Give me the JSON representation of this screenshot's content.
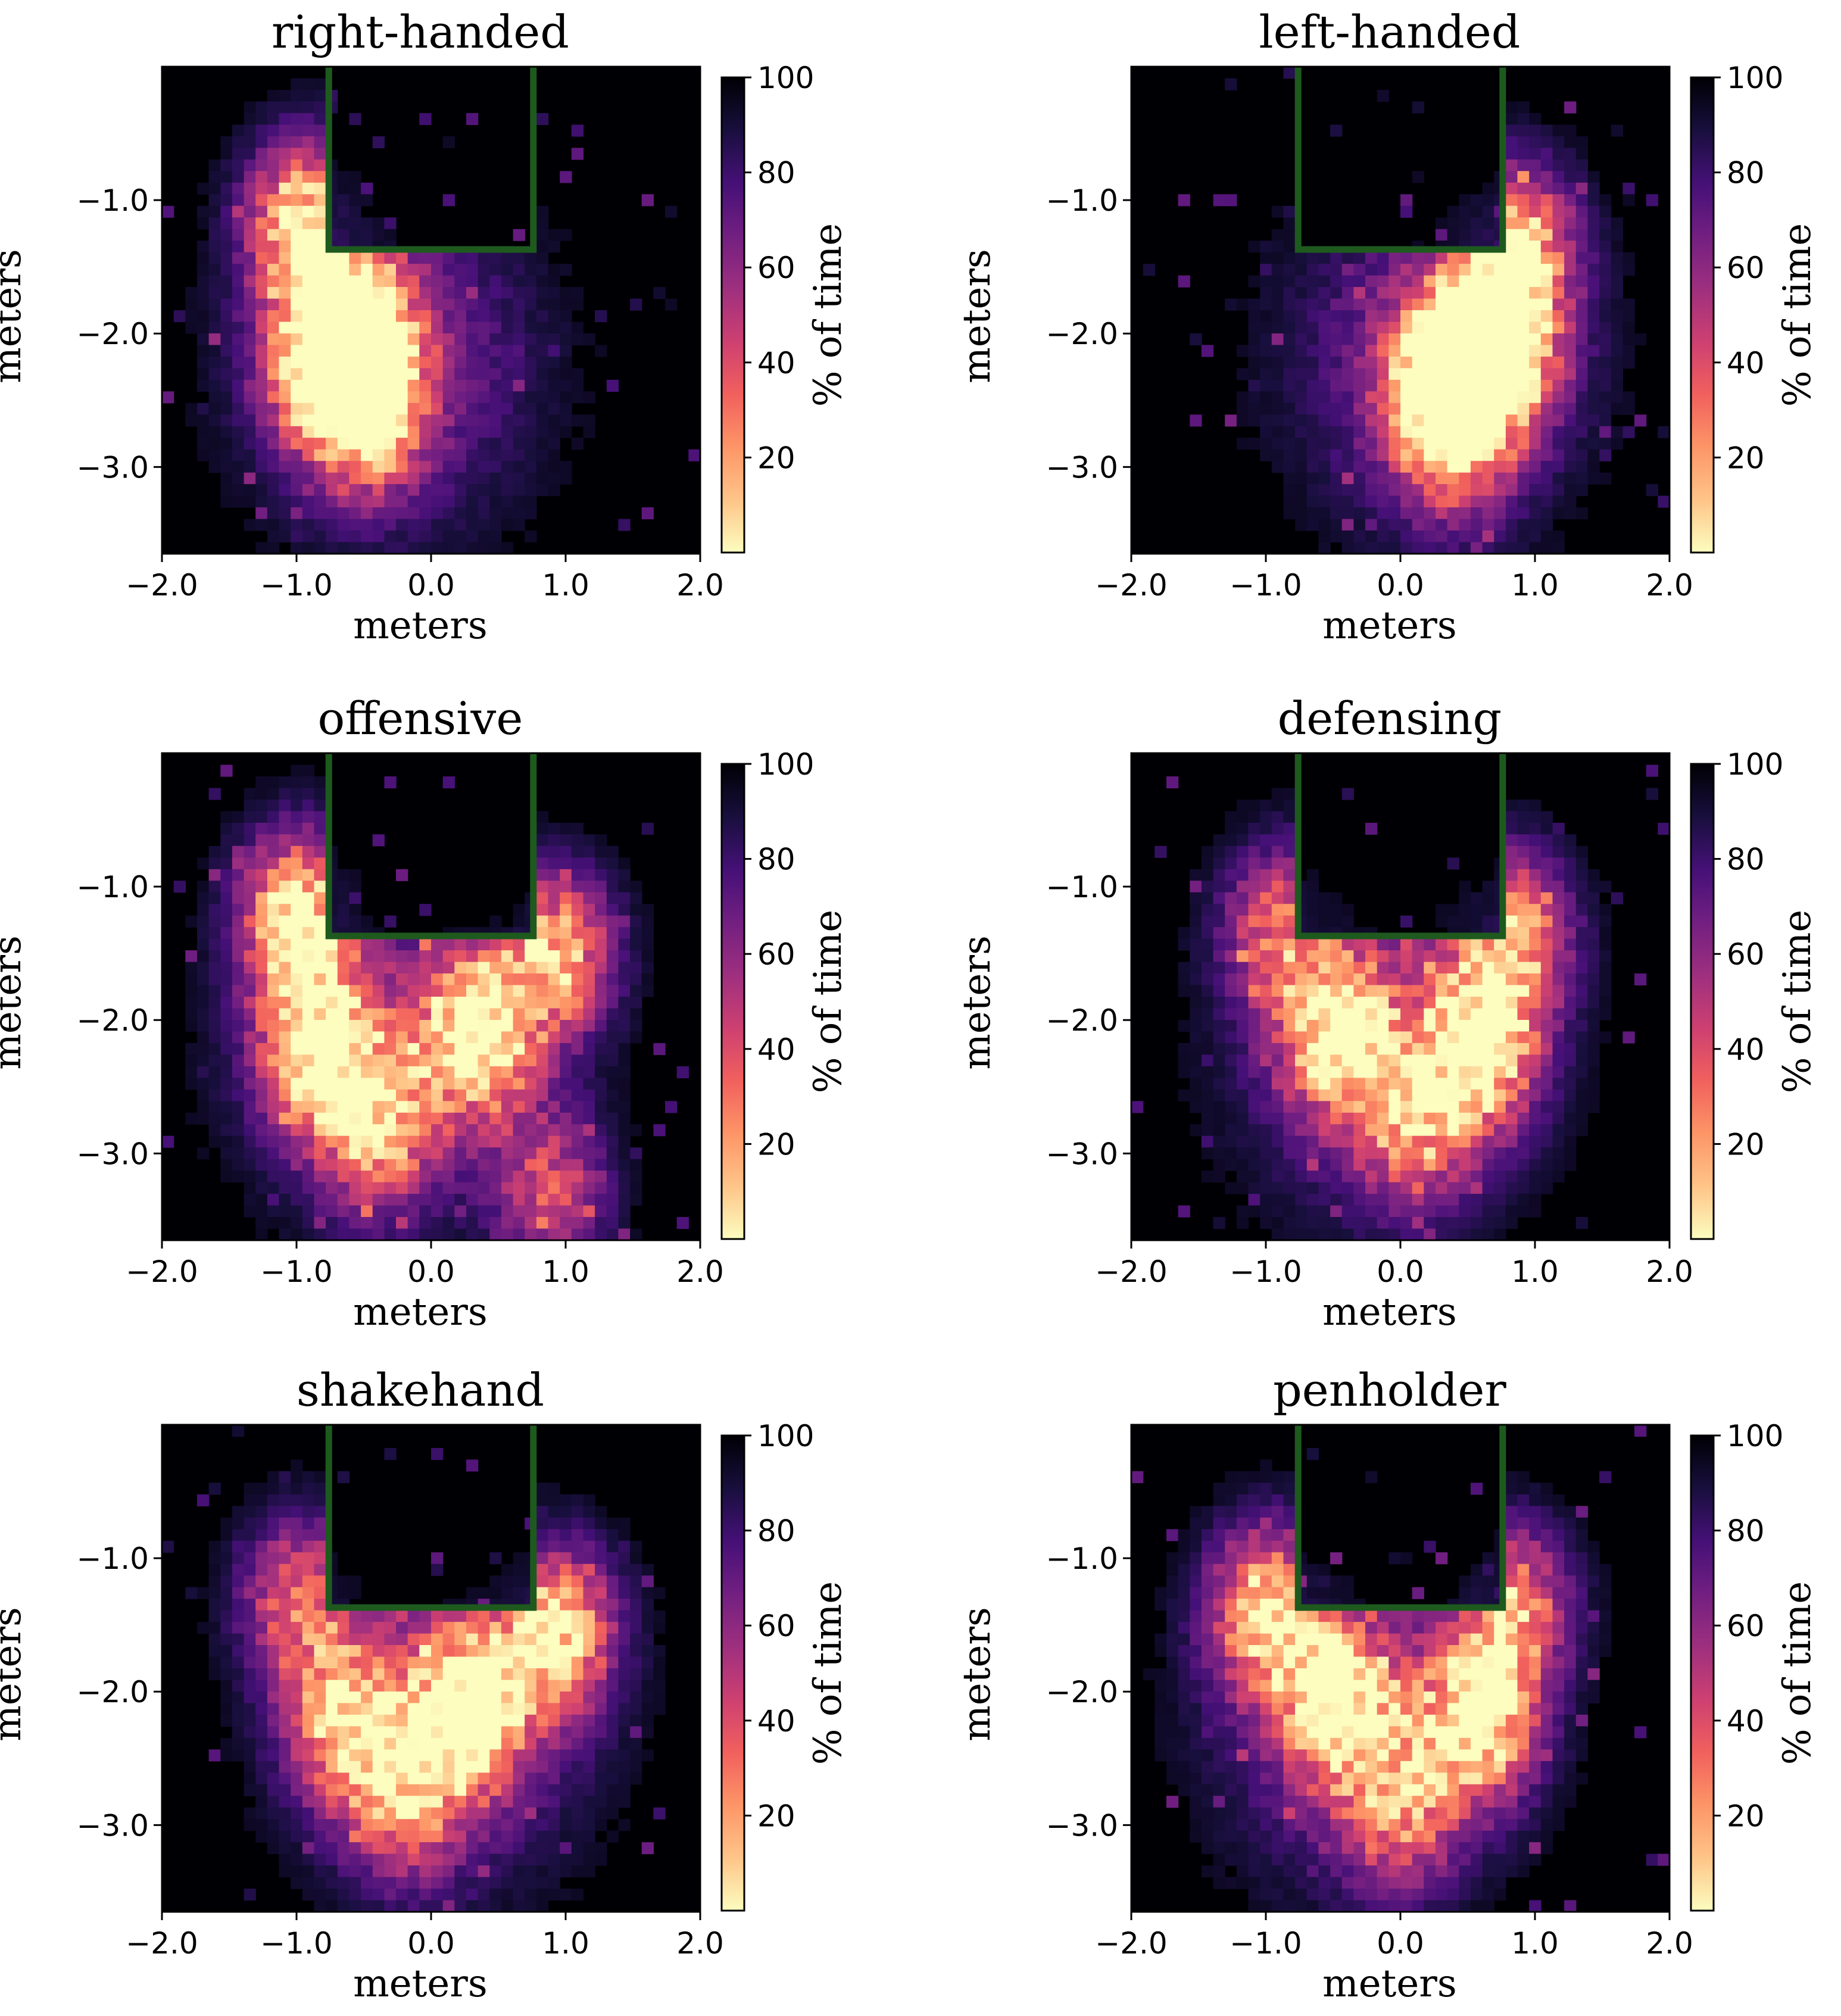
{
  "colors": {
    "table_outline": "#1e5a1e",
    "colormap": [
      "#fcfdbf",
      "#fec488",
      "#fd9567",
      "#f1605d",
      "#cd4071",
      "#9e2f7f",
      "#721f81",
      "#451077",
      "#180f3d",
      "#000004"
    ]
  },
  "chart_data": [
    {
      "type": "heatmap",
      "title": "right-handed",
      "xlabel": "meters",
      "ylabel": "meters",
      "xlim": [
        -2.0,
        2.0
      ],
      "ylim": [
        -3.65,
        0.0
      ],
      "xticks": [
        "−2.0",
        "−1.0",
        "0.0",
        "1.0",
        "2.0"
      ],
      "yticks": [
        "−1.0",
        "−2.0",
        "−3.0"
      ],
      "colorbar": {
        "label": "% of time",
        "range": [
          0,
          100
        ],
        "ticks": [
          "100",
          "80",
          "60",
          "40",
          "20"
        ]
      },
      "table_rect": {
        "x": [
          -0.76,
          0.76
        ],
        "y": [
          -1.37,
          0.0
        ]
      },
      "hotspots": [
        {
          "x": -0.95,
          "y": -1.15,
          "intensity": 0.85
        },
        {
          "x": -0.55,
          "y": -2.0,
          "intensity": 0.95
        },
        {
          "x": -0.5,
          "y": -2.6,
          "intensity": 0.75
        },
        {
          "x": -0.85,
          "y": -2.2,
          "intensity": 0.6
        }
      ]
    },
    {
      "type": "heatmap",
      "title": "left-handed",
      "xlabel": "meters",
      "ylabel": "meters",
      "xlim": [
        -2.0,
        2.0
      ],
      "ylim": [
        -3.65,
        0.0
      ],
      "xticks": [
        "−2.0",
        "−1.0",
        "0.0",
        "1.0",
        "2.0"
      ],
      "yticks": [
        "−1.0",
        "−2.0",
        "−3.0"
      ],
      "colorbar": {
        "label": "% of time",
        "range": [
          0,
          100
        ],
        "ticks": [
          "100",
          "80",
          "60",
          "40",
          "20"
        ]
      },
      "table_rect": {
        "x": [
          -0.76,
          0.76
        ],
        "y": [
          -1.37,
          0.0
        ]
      },
      "hotspots": [
        {
          "x": 0.85,
          "y": -1.35,
          "intensity": 0.8
        },
        {
          "x": 0.35,
          "y": -2.3,
          "intensity": 0.95
        },
        {
          "x": 0.75,
          "y": -2.1,
          "intensity": 0.85
        },
        {
          "x": 0.4,
          "y": -2.8,
          "intensity": 0.55
        }
      ]
    },
    {
      "type": "heatmap",
      "title": "offensive",
      "xlabel": "meters",
      "ylabel": "meters",
      "xlim": [
        -2.0,
        2.0
      ],
      "ylim": [
        -3.65,
        0.0
      ],
      "xticks": [
        "−2.0",
        "−1.0",
        "0.0",
        "1.0",
        "2.0"
      ],
      "yticks": [
        "−1.0",
        "−2.0",
        "−3.0"
      ],
      "colorbar": {
        "label": "% of time",
        "range": [
          0,
          100
        ],
        "ticks": [
          "100",
          "80",
          "60",
          "40",
          "20"
        ]
      },
      "table_rect": {
        "x": [
          -0.76,
          0.76
        ],
        "y": [
          -1.37,
          0.0
        ]
      },
      "hotspots": [
        {
          "x": -1.0,
          "y": -1.2,
          "intensity": 0.9
        },
        {
          "x": -0.85,
          "y": -2.2,
          "intensity": 0.85
        },
        {
          "x": 0.35,
          "y": -2.1,
          "intensity": 0.95
        },
        {
          "x": 0.95,
          "y": -1.5,
          "intensity": 0.8
        },
        {
          "x": -0.4,
          "y": -2.8,
          "intensity": 0.65
        },
        {
          "x": 0.9,
          "y": -3.3,
          "intensity": 0.55
        }
      ]
    },
    {
      "type": "heatmap",
      "title": "defensing",
      "xlabel": "meters",
      "ylabel": "meters",
      "xlim": [
        -2.0,
        2.0
      ],
      "ylim": [
        -3.65,
        0.0
      ],
      "xticks": [
        "−2.0",
        "−1.0",
        "0.0",
        "1.0",
        "2.0"
      ],
      "yticks": [
        "−1.0",
        "−2.0",
        "−3.0"
      ],
      "colorbar": {
        "label": "% of time",
        "range": [
          0,
          100
        ],
        "ticks": [
          "100",
          "80",
          "60",
          "40",
          "20"
        ]
      },
      "table_rect": {
        "x": [
          -0.76,
          0.76
        ],
        "y": [
          -1.37,
          0.0
        ]
      },
      "hotspots": [
        {
          "x": -0.45,
          "y": -2.1,
          "intensity": 0.85
        },
        {
          "x": 0.6,
          "y": -2.2,
          "intensity": 0.95
        },
        {
          "x": 0.85,
          "y": -1.35,
          "intensity": 0.75
        },
        {
          "x": -0.9,
          "y": -1.3,
          "intensity": 0.55
        },
        {
          "x": 0.1,
          "y": -2.8,
          "intensity": 0.55
        }
      ]
    },
    {
      "type": "heatmap",
      "title": "shakehand",
      "xlabel": "meters",
      "ylabel": "meters",
      "xlim": [
        -2.0,
        2.0
      ],
      "ylim": [
        -3.65,
        0.0
      ],
      "xticks": [
        "−2.0",
        "−1.0",
        "0.0",
        "1.0",
        "2.0"
      ],
      "yticks": [
        "−1.0",
        "−2.0",
        "−3.0"
      ],
      "colorbar": {
        "label": "% of time",
        "range": [
          0,
          100
        ],
        "ticks": [
          "100",
          "80",
          "60",
          "40",
          "20"
        ]
      },
      "table_rect": {
        "x": [
          -0.76,
          0.76
        ],
        "y": [
          -1.37,
          0.0
        ]
      },
      "hotspots": [
        {
          "x": 0.3,
          "y": -2.1,
          "intensity": 0.95
        },
        {
          "x": -0.65,
          "y": -2.2,
          "intensity": 0.75
        },
        {
          "x": 0.95,
          "y": -1.55,
          "intensity": 0.85
        },
        {
          "x": -1.0,
          "y": -1.3,
          "intensity": 0.6
        },
        {
          "x": -0.2,
          "y": -2.8,
          "intensity": 0.6
        }
      ]
    },
    {
      "type": "heatmap",
      "title": "penholder",
      "xlabel": "meters",
      "ylabel": "meters",
      "xlim": [
        -2.0,
        2.0
      ],
      "ylim": [
        -3.65,
        0.0
      ],
      "xticks": [
        "−2.0",
        "−1.0",
        "0.0",
        "1.0",
        "2.0"
      ],
      "yticks": [
        "−1.0",
        "−2.0",
        "−3.0"
      ],
      "colorbar": {
        "label": "% of time",
        "range": [
          0,
          100
        ],
        "ticks": [
          "100",
          "80",
          "60",
          "40",
          "20"
        ]
      },
      "table_rect": {
        "x": [
          -0.76,
          0.76
        ],
        "y": [
          -1.37,
          0.0
        ]
      },
      "hotspots": [
        {
          "x": -1.0,
          "y": -1.4,
          "intensity": 0.85
        },
        {
          "x": -0.45,
          "y": -2.1,
          "intensity": 0.8
        },
        {
          "x": 0.6,
          "y": -2.2,
          "intensity": 0.95
        },
        {
          "x": 0.85,
          "y": -1.35,
          "intensity": 0.7
        },
        {
          "x": 0.0,
          "y": -2.9,
          "intensity": 0.55
        }
      ]
    }
  ]
}
